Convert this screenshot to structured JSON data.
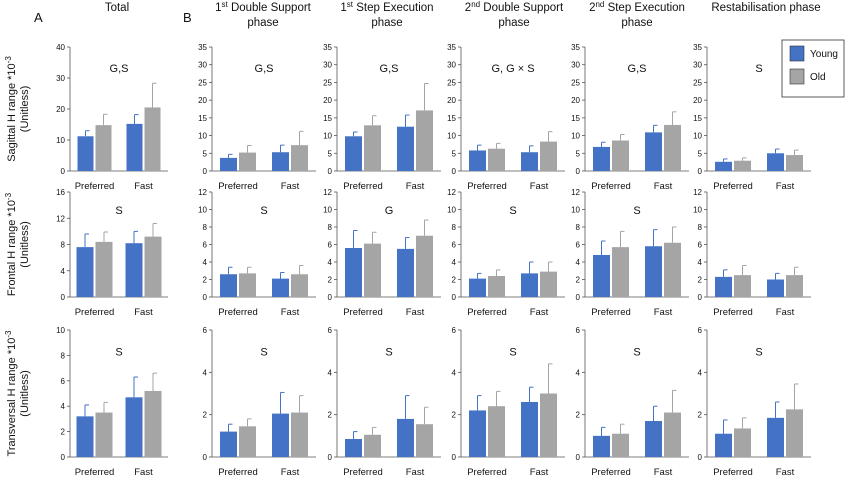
{
  "figure": {
    "panel_a_letter": "A",
    "panel_b_letter": "B",
    "columns": [
      {
        "title_lines": [
          "Total"
        ]
      },
      {
        "title_lines": [
          "1st Double Support",
          "phase"
        ],
        "sup": "st",
        "ordinal": "1"
      },
      {
        "title_lines": [
          "1st Step Execution",
          "phase"
        ],
        "sup": "st",
        "ordinal": "1"
      },
      {
        "title_lines": [
          "2nd Double Support",
          "phase"
        ],
        "sup": "nd",
        "ordinal": "2"
      },
      {
        "title_lines": [
          "2nd  Step Execution",
          "phase"
        ],
        "sup": "nd",
        "ordinal": "2"
      },
      {
        "title_lines": [
          "Restabilisation phase"
        ]
      }
    ],
    "row_labels": [
      {
        "line1": "Sagittal H range *10",
        "exp": "-3",
        "line2": "(Unitless)"
      },
      {
        "line1": "Frontal H range *10",
        "exp": "-3",
        "line2": "(Unitless)"
      },
      {
        "line1": "Transversal H range *10",
        "exp": "-3",
        "line2": "(Unitless)"
      }
    ],
    "legend": [
      {
        "label": "Young",
        "color": "#4472C4"
      },
      {
        "label": "Old",
        "color": "#A5A5A5"
      }
    ]
  },
  "chart_data": [
    {
      "type": "bar",
      "row": "Sagittal",
      "col": "Total",
      "categories": [
        "Preferred",
        "Fast"
      ],
      "ylim": [
        0,
        40
      ],
      "yticks": [
        0,
        10,
        20,
        30,
        40
      ],
      "annotation": "G,S",
      "series": [
        {
          "name": "Young",
          "values": [
            11.2,
            15.2
          ],
          "errors": [
            1.8,
            3.0
          ]
        },
        {
          "name": "Old",
          "values": [
            14.8,
            20.5
          ],
          "errors": [
            3.5,
            7.8
          ]
        }
      ]
    },
    {
      "type": "bar",
      "row": "Sagittal",
      "col": "1st Double Support phase",
      "categories": [
        "Preferred",
        "Fast"
      ],
      "ylim": [
        0,
        35
      ],
      "yticks": [
        0,
        5,
        10,
        15,
        20,
        25,
        30,
        35
      ],
      "annotation": "G,S",
      "series": [
        {
          "name": "Young",
          "values": [
            3.7,
            5.3
          ],
          "errors": [
            1.0,
            2.0
          ]
        },
        {
          "name": "Old",
          "values": [
            5.2,
            7.3
          ],
          "errors": [
            2.0,
            3.9
          ]
        }
      ]
    },
    {
      "type": "bar",
      "row": "Sagittal",
      "col": "1st Step Execution phase",
      "categories": [
        "Preferred",
        "Fast"
      ],
      "ylim": [
        0,
        35
      ],
      "yticks": [
        0,
        5,
        10,
        15,
        20,
        25,
        30,
        35
      ],
      "annotation": "G,S",
      "series": [
        {
          "name": "Young",
          "values": [
            9.8,
            12.5
          ],
          "errors": [
            1.2,
            3.3
          ]
        },
        {
          "name": "Old",
          "values": [
            12.9,
            17.1
          ],
          "errors": [
            2.7,
            7.6
          ]
        }
      ]
    },
    {
      "type": "bar",
      "row": "Sagittal",
      "col": "2nd Double Support phase",
      "categories": [
        "Preferred",
        "Fast"
      ],
      "ylim": [
        0,
        35
      ],
      "yticks": [
        0,
        5,
        10,
        15,
        20,
        25,
        30,
        35
      ],
      "annotation": "G, G × S",
      "series": [
        {
          "name": "Young",
          "values": [
            5.8,
            5.3
          ],
          "errors": [
            1.5,
            1.8
          ]
        },
        {
          "name": "Old",
          "values": [
            6.3,
            8.3
          ],
          "errors": [
            1.5,
            2.8
          ]
        }
      ]
    },
    {
      "type": "bar",
      "row": "Sagittal",
      "col": "2nd Step Execution phase",
      "categories": [
        "Preferred",
        "Fast"
      ],
      "ylim": [
        0,
        35
      ],
      "yticks": [
        0,
        5,
        10,
        15,
        20,
        25,
        30,
        35
      ],
      "annotation": "G,S",
      "series": [
        {
          "name": "Young",
          "values": [
            6.8,
            10.9
          ],
          "errors": [
            1.3,
            2.0
          ]
        },
        {
          "name": "Old",
          "values": [
            8.6,
            13.0
          ],
          "errors": [
            1.7,
            3.7
          ]
        }
      ]
    },
    {
      "type": "bar",
      "row": "Sagittal",
      "col": "Restabilisation phase",
      "categories": [
        "Preferred",
        "Fast"
      ],
      "ylim": [
        0,
        35
      ],
      "yticks": [
        0,
        5,
        10,
        15,
        20,
        25,
        30,
        35
      ],
      "annotation": "S",
      "series": [
        {
          "name": "Young",
          "values": [
            2.6,
            5.0
          ],
          "errors": [
            0.8,
            1.2
          ]
        },
        {
          "name": "Old",
          "values": [
            2.9,
            4.5
          ],
          "errors": [
            0.8,
            1.4
          ]
        }
      ]
    },
    {
      "type": "bar",
      "row": "Frontal",
      "col": "Total",
      "categories": [
        "Preferred",
        "Fast"
      ],
      "ylim": [
        0,
        16
      ],
      "yticks": [
        0,
        4,
        8,
        12,
        16
      ],
      "annotation": "S",
      "series": [
        {
          "name": "Young",
          "values": [
            7.6,
            8.2
          ],
          "errors": [
            2.0,
            1.8
          ]
        },
        {
          "name": "Old",
          "values": [
            8.4,
            9.2
          ],
          "errors": [
            1.5,
            2.0
          ]
        }
      ]
    },
    {
      "type": "bar",
      "row": "Frontal",
      "col": "1st Double Support phase",
      "categories": [
        "Preferred",
        "Fast"
      ],
      "ylim": [
        0,
        12
      ],
      "yticks": [
        0,
        2,
        4,
        6,
        8,
        10,
        12
      ],
      "annotation": "S",
      "series": [
        {
          "name": "Young",
          "values": [
            2.6,
            2.1
          ],
          "errors": [
            0.8,
            0.7
          ]
        },
        {
          "name": "Old",
          "values": [
            2.7,
            2.6
          ],
          "errors": [
            0.7,
            1.0
          ]
        }
      ]
    },
    {
      "type": "bar",
      "row": "Frontal",
      "col": "1st Step Execution phase",
      "categories": [
        "Preferred",
        "Fast"
      ],
      "ylim": [
        0,
        12
      ],
      "yticks": [
        0,
        2,
        4,
        6,
        8,
        10,
        12
      ],
      "annotation": "G",
      "series": [
        {
          "name": "Young",
          "values": [
            5.6,
            5.5
          ],
          "errors": [
            2.0,
            1.3
          ]
        },
        {
          "name": "Old",
          "values": [
            6.1,
            7.0
          ],
          "errors": [
            1.3,
            1.8
          ]
        }
      ]
    },
    {
      "type": "bar",
      "row": "Frontal",
      "col": "2nd Double Support phase",
      "categories": [
        "Preferred",
        "Fast"
      ],
      "ylim": [
        0,
        12
      ],
      "yticks": [
        0,
        2,
        4,
        6,
        8,
        10,
        12
      ],
      "annotation": "S",
      "series": [
        {
          "name": "Young",
          "values": [
            2.1,
            2.7
          ],
          "errors": [
            0.6,
            1.3
          ]
        },
        {
          "name": "Old",
          "values": [
            2.4,
            2.9
          ],
          "errors": [
            0.7,
            1.1
          ]
        }
      ]
    },
    {
      "type": "bar",
      "row": "Frontal",
      "col": "2nd Step Execution phase",
      "categories": [
        "Preferred",
        "Fast"
      ],
      "ylim": [
        0,
        12
      ],
      "yticks": [
        0,
        2,
        4,
        6,
        8,
        10,
        12
      ],
      "annotation": "S",
      "series": [
        {
          "name": "Young",
          "values": [
            4.8,
            5.8
          ],
          "errors": [
            1.6,
            1.9
          ]
        },
        {
          "name": "Old",
          "values": [
            5.7,
            6.2
          ],
          "errors": [
            1.8,
            1.8
          ]
        }
      ]
    },
    {
      "type": "bar",
      "row": "Frontal",
      "col": "Restabilisation phase",
      "categories": [
        "Preferred",
        "Fast"
      ],
      "ylim": [
        0,
        12
      ],
      "yticks": [
        0,
        2,
        4,
        6,
        8,
        10,
        12
      ],
      "annotation": "",
      "series": [
        {
          "name": "Young",
          "values": [
            2.3,
            2.0
          ],
          "errors": [
            0.8,
            0.7
          ]
        },
        {
          "name": "Old",
          "values": [
            2.5,
            2.5
          ],
          "errors": [
            1.1,
            0.9
          ]
        }
      ]
    },
    {
      "type": "bar",
      "row": "Transversal",
      "col": "Total",
      "categories": [
        "Preferred",
        "Fast"
      ],
      "ylim": [
        0,
        10
      ],
      "yticks": [
        0,
        2,
        4,
        6,
        8,
        10
      ],
      "annotation": "S",
      "series": [
        {
          "name": "Young",
          "values": [
            3.2,
            4.7
          ],
          "errors": [
            0.9,
            1.6
          ]
        },
        {
          "name": "Old",
          "values": [
            3.5,
            5.2
          ],
          "errors": [
            0.8,
            1.4
          ]
        }
      ]
    },
    {
      "type": "bar",
      "row": "Transversal",
      "col": "1st Double Support phase",
      "categories": [
        "Preferred",
        "Fast"
      ],
      "ylim": [
        0,
        6
      ],
      "yticks": [
        0,
        2,
        4,
        6
      ],
      "annotation": "S",
      "series": [
        {
          "name": "Young",
          "values": [
            1.2,
            2.05
          ],
          "errors": [
            0.35,
            1.0
          ]
        },
        {
          "name": "Old",
          "values": [
            1.45,
            2.1
          ],
          "errors": [
            0.35,
            0.8
          ]
        }
      ]
    },
    {
      "type": "bar",
      "row": "Transversal",
      "col": "1st Step Execution phase",
      "categories": [
        "Preferred",
        "Fast"
      ],
      "ylim": [
        0,
        6
      ],
      "yticks": [
        0,
        2,
        4,
        6
      ],
      "annotation": "S",
      "series": [
        {
          "name": "Young",
          "values": [
            0.85,
            1.8
          ],
          "errors": [
            0.35,
            1.1
          ]
        },
        {
          "name": "Old",
          "values": [
            1.05,
            1.55
          ],
          "errors": [
            0.35,
            0.8
          ]
        }
      ]
    },
    {
      "type": "bar",
      "row": "Transversal",
      "col": "2nd Double Support phase",
      "categories": [
        "Preferred",
        "Fast"
      ],
      "ylim": [
        0,
        6
      ],
      "yticks": [
        0,
        2,
        4,
        6
      ],
      "annotation": "S",
      "series": [
        {
          "name": "Young",
          "values": [
            2.2,
            2.6
          ],
          "errors": [
            0.7,
            0.7
          ]
        },
        {
          "name": "Old",
          "values": [
            2.4,
            3.0
          ],
          "errors": [
            0.7,
            1.4
          ]
        }
      ]
    },
    {
      "type": "bar",
      "row": "Transversal",
      "col": "2nd Step Execution phase",
      "categories": [
        "Preferred",
        "Fast"
      ],
      "ylim": [
        0,
        6
      ],
      "yticks": [
        0,
        2,
        4,
        6
      ],
      "annotation": "S",
      "series": [
        {
          "name": "Young",
          "values": [
            1.0,
            1.7
          ],
          "errors": [
            0.4,
            0.7
          ]
        },
        {
          "name": "Old",
          "values": [
            1.1,
            2.1
          ],
          "errors": [
            0.45,
            1.05
          ]
        }
      ]
    },
    {
      "type": "bar",
      "row": "Transversal",
      "col": "Restabilisation phase",
      "categories": [
        "Preferred",
        "Fast"
      ],
      "ylim": [
        0,
        6
      ],
      "yticks": [
        0,
        2,
        4,
        6
      ],
      "annotation": "S",
      "series": [
        {
          "name": "Young",
          "values": [
            1.1,
            1.85
          ],
          "errors": [
            0.65,
            0.75
          ]
        },
        {
          "name": "Old",
          "values": [
            1.35,
            2.25
          ],
          "errors": [
            0.5,
            1.2
          ]
        }
      ]
    }
  ]
}
